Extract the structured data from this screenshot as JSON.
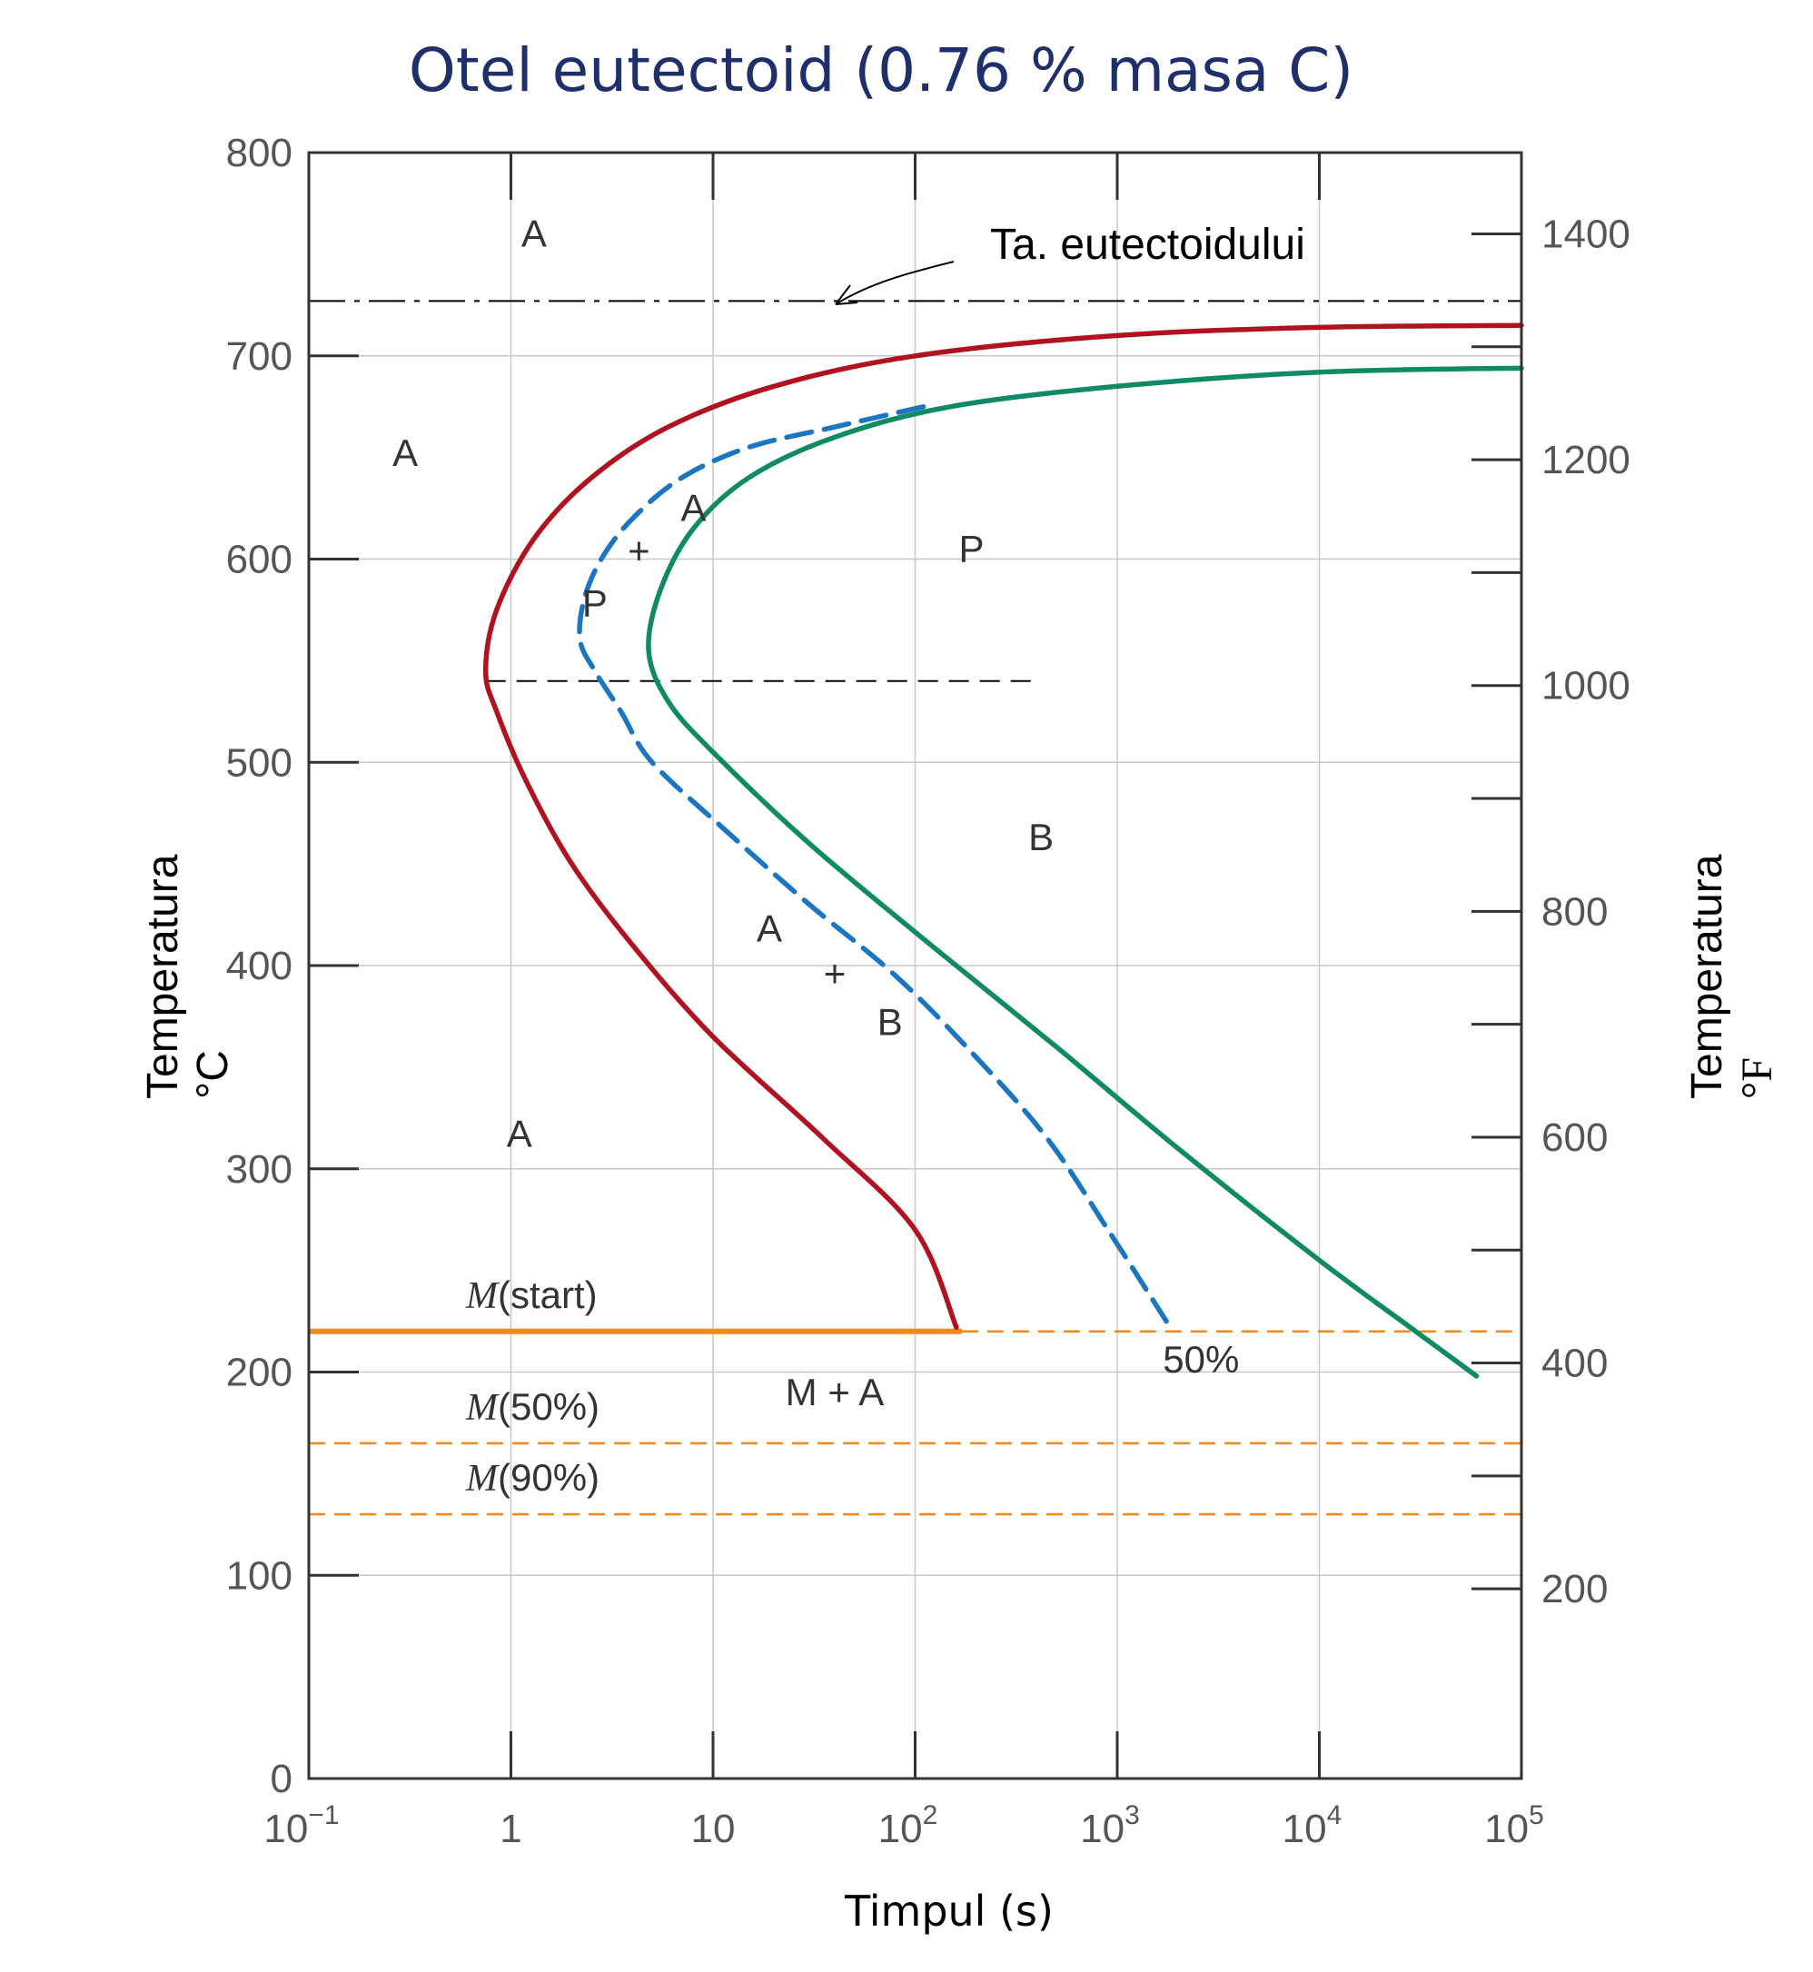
{
  "chart_data": {
    "type": "line",
    "title": "Otel eutectoid (0.76 % masa C)",
    "xlabel": "Timpul (s)",
    "ylabel": "Temperatura",
    "ylabel_unit": "°C",
    "y2label": "Temperatura",
    "y2label_unit": "°F",
    "xscale": "log",
    "xlim": [
      0.1,
      100000
    ],
    "ylim": [
      0,
      800
    ],
    "y2lim": [
      32,
      1472
    ],
    "grid": true,
    "x_ticks": [
      {
        "value": 0.1,
        "base": "10",
        "exp": "−1"
      },
      {
        "value": 1,
        "base": "1",
        "exp": ""
      },
      {
        "value": 10,
        "base": "10",
        "exp": ""
      },
      {
        "value": 100,
        "base": "10",
        "exp": "2"
      },
      {
        "value": 1000,
        "base": "10",
        "exp": "3"
      },
      {
        "value": 10000,
        "base": "10",
        "exp": "4"
      },
      {
        "value": 100000,
        "base": "10",
        "exp": "5"
      }
    ],
    "y_ticks": [
      0,
      100,
      200,
      300,
      400,
      500,
      600,
      700,
      800
    ],
    "y2_ticks_labeled": [
      200,
      400,
      600,
      800,
      1000,
      1200,
      1400
    ],
    "y2_ticks_minor": [
      300,
      500,
      700,
      900,
      1100,
      1300
    ],
    "eutectoid_temperature": 727,
    "eutectoid_label": "Ta. eutectoidului",
    "pearlite_bainite_boundary": {
      "temperature": 540,
      "x_range": [
        0.75,
        400
      ]
    },
    "series": [
      {
        "name": "",
        "role": "start",
        "color": "#b0121f",
        "style": "solid",
        "x": [
          160,
          100,
          35,
          10,
          4,
          2,
          1.2,
          0.85,
          0.75,
          0.85,
          1.3,
          2.5,
          6,
          20,
          100,
          1000,
          10000,
          100000
        ],
        "y": [
          222,
          270,
          315,
          365,
          410,
          450,
          490,
          525,
          545,
          575,
          610,
          640,
          665,
          685,
          700,
          710,
          714,
          715
        ]
      },
      {
        "name": "50%",
        "role": "50% completion",
        "color": "#1a75c2",
        "style": "dashed",
        "x": [
          1750,
          900,
          450,
          200,
          80,
          30,
          12,
          5,
          3.5,
          2.6,
          2.2,
          2.3,
          2.8,
          4,
          7,
          15,
          40,
          110
        ],
        "y": [
          225,
          270,
          315,
          355,
          395,
          430,
          465,
          500,
          525,
          545,
          560,
          580,
          600,
          620,
          640,
          655,
          665,
          675
        ]
      },
      {
        "name": "",
        "role": "finish",
        "color": "#0e8a64",
        "style": "solid",
        "x": [
          60000,
          30000,
          10000,
          2000,
          500,
          120,
          30,
          10,
          6,
          4.8,
          5.5,
          8,
          15,
          40,
          150,
          1000,
          10000,
          100000
        ],
        "y": [
          198,
          220,
          255,
          310,
          360,
          410,
          460,
          505,
          530,
          555,
          585,
          615,
          640,
          660,
          675,
          685,
          692,
          694
        ]
      }
    ],
    "martensite_lines": [
      {
        "label_italic": "M",
        "label_rest": "(start)",
        "temperature": 220,
        "color": "#f0891e",
        "solid_until_x": 170
      },
      {
        "label_italic": "M",
        "label_rest": "(50%)",
        "temperature": 165,
        "color": "#f0891e"
      },
      {
        "label_italic": "M",
        "label_rest": "(90%)",
        "temperature": 130,
        "color": "#f0891e"
      }
    ],
    "regions": [
      {
        "text": "A",
        "x": 1.3,
        "y": 760
      },
      {
        "text": "A",
        "x": 0.3,
        "y": 652
      },
      {
        "text": "A",
        "x": 1.1,
        "y": 317
      },
      {
        "text": "A",
        "x": 8,
        "y": 625
      },
      {
        "text": "+",
        "x": 4.3,
        "y": 604
      },
      {
        "text": "P",
        "x": 2.6,
        "y": 578
      },
      {
        "text": "P",
        "x": 190,
        "y": 605
      },
      {
        "text": "B",
        "x": 420,
        "y": 463
      },
      {
        "text": "A",
        "x": 19,
        "y": 418
      },
      {
        "text": "+",
        "x": 40,
        "y": 396
      },
      {
        "text": "B",
        "x": 75,
        "y": 372
      },
      {
        "text": "M + A",
        "x": 40,
        "y": 190
      },
      {
        "text": "50%",
        "x": 2600,
        "y": 206
      }
    ]
  }
}
